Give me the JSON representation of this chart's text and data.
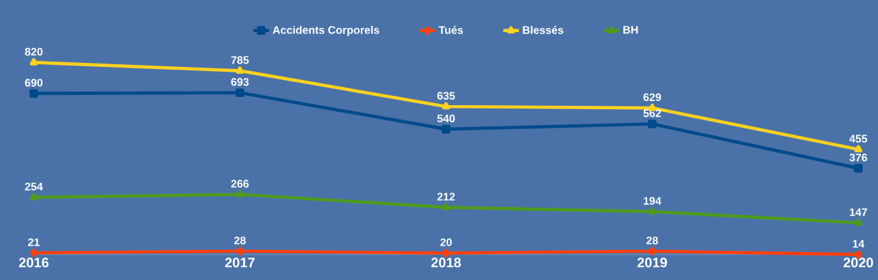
{
  "chart_data": {
    "type": "line",
    "categories": [
      "2016",
      "2017",
      "2018",
      "2019",
      "2020"
    ],
    "series": [
      {
        "name": "Accidents Corporels",
        "color": "#004a8c",
        "marker": "square",
        "values": [
          690,
          693,
          540,
          562,
          376
        ]
      },
      {
        "name": "Tués",
        "color": "#ff4010",
        "marker": "diamond",
        "values": [
          21,
          28,
          20,
          28,
          14
        ]
      },
      {
        "name": "Blessés",
        "color": "#ffd21f",
        "marker": "triangle",
        "values": [
          820,
          785,
          635,
          629,
          455
        ]
      },
      {
        "name": "BH",
        "color": "#4f9a1e",
        "marker": "triangle",
        "values": [
          254,
          266,
          212,
          194,
          147
        ]
      }
    ],
    "data_labels": true,
    "legend": "top",
    "grid": false,
    "line_style": "solid"
  }
}
